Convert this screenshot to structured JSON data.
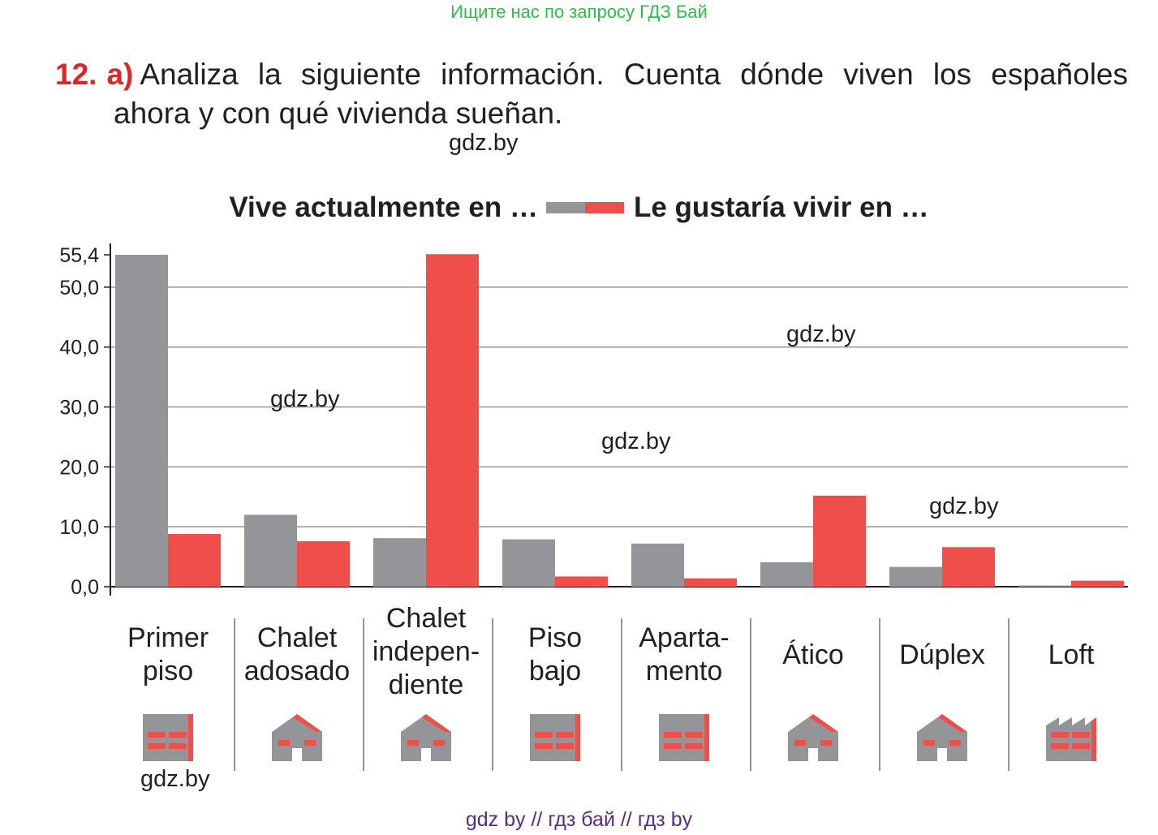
{
  "banner": "Ищите нас по запросу ГДЗ Бай",
  "task": {
    "number": "12.",
    "part": "a)",
    "line1": "Analiza la siguiente información. Cuenta dónde viven los españoles",
    "line2": "ahora y con qué vivienda sueñan."
  },
  "watermark": "gdz.by",
  "footer": "gdz by  //  гдз бай  //  гдз by",
  "colors": {
    "current": "#939598",
    "desired": "#ef4e4a",
    "grid": "#939598",
    "accent": "#e0232a"
  },
  "chart_data": {
    "type": "bar",
    "legend": [
      "Vive actualmente en …",
      "Le gustaría vivir en …"
    ],
    "legend_placement": "top",
    "categories": [
      "Primer piso",
      "Chalet adosado",
      "Chalet independiente",
      "Piso bajo",
      "Apartamento",
      "Ático",
      "Dúplex",
      "Loft"
    ],
    "category_labels": [
      [
        "Primer",
        "piso"
      ],
      [
        "Chalet",
        "adosado"
      ],
      [
        "Chalet",
        "indepen-",
        "diente"
      ],
      [
        "Piso",
        "bajo"
      ],
      [
        "Aparta-",
        "mento"
      ],
      [
        "Ático"
      ],
      [
        "Dúplex"
      ],
      [
        "Loft"
      ]
    ],
    "series": [
      {
        "name": "Vive actualmente en …",
        "values": [
          55.4,
          12.0,
          8.1,
          7.9,
          7.2,
          4.1,
          3.3,
          0.2
        ]
      },
      {
        "name": "Le gustaría vivir en …",
        "values": [
          8.8,
          7.6,
          55.5,
          1.7,
          1.4,
          15.2,
          6.6,
          1.0
        ]
      }
    ],
    "ylim": [
      0,
      55.4
    ],
    "yticks": [
      0,
      10,
      20,
      30,
      40,
      50,
      55.4
    ],
    "ytick_labels": [
      "0,0",
      "10,0",
      "20,0",
      "30,0",
      "40,0",
      "50,0",
      "55,4"
    ],
    "grid": true
  }
}
